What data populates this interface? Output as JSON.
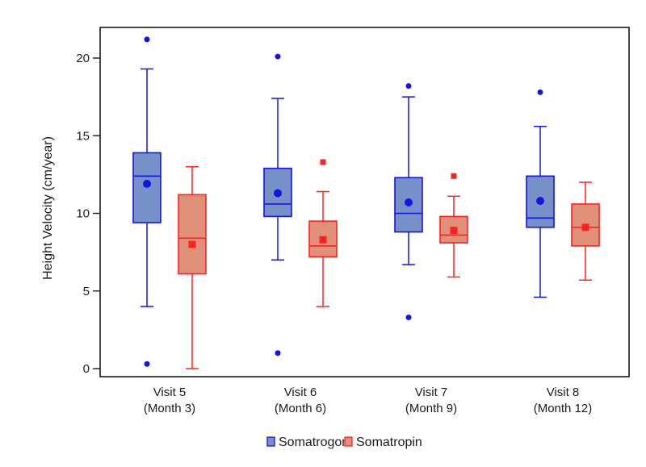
{
  "chart_data": {
    "type": "boxplot",
    "title": "",
    "xlabel": "",
    "ylabel": "Height Velocity (cm/year)",
    "ylim": [
      -0.8,
      22
    ],
    "yticks": [
      0,
      5,
      10,
      15,
      20
    ],
    "grid": false,
    "legend_position": "bottom-center",
    "categories": [
      {
        "line1": "Visit 5",
        "line2": "(Month 3)"
      },
      {
        "line1": "Visit 6",
        "line2": "(Month 6)"
      },
      {
        "line1": "Visit 7",
        "line2": "(Month 9)"
      },
      {
        "line1": "Visit 8",
        "line2": "(Month 12)"
      }
    ],
    "series": [
      {
        "name": "Somatrogon",
        "stroke": "#1414e6",
        "fill": "#7890c8",
        "mean_marker": "circle",
        "boxes": [
          {
            "whisker_low": 4.0,
            "q1": 9.4,
            "median": 12.4,
            "q3": 13.9,
            "whisker_high": 19.3,
            "mean": 11.9,
            "outliers": [
              21.2,
              0.3
            ]
          },
          {
            "whisker_low": 7.0,
            "q1": 9.8,
            "median": 10.6,
            "q3": 12.9,
            "whisker_high": 17.4,
            "mean": 11.3,
            "outliers": [
              20.1,
              1.0
            ]
          },
          {
            "whisker_low": 6.7,
            "q1": 8.8,
            "median": 10.0,
            "q3": 12.3,
            "whisker_high": 17.5,
            "mean": 10.7,
            "outliers": [
              18.2,
              3.3
            ]
          },
          {
            "whisker_low": 4.6,
            "q1": 9.1,
            "median": 9.7,
            "q3": 12.4,
            "whisker_high": 15.6,
            "mean": 10.8,
            "outliers": [
              17.8
            ]
          }
        ]
      },
      {
        "name": "Somatropin",
        "stroke": "#ff2020",
        "fill": "#e09078",
        "mean_marker": "square",
        "boxes": [
          {
            "whisker_low": 0.0,
            "q1": 6.1,
            "median": 8.4,
            "q3": 11.2,
            "whisker_high": 13.0,
            "mean": 8.0,
            "outliers": []
          },
          {
            "whisker_low": 4.0,
            "q1": 7.2,
            "median": 7.9,
            "q3": 9.5,
            "whisker_high": 11.4,
            "mean": 8.3,
            "outliers": [
              13.3
            ]
          },
          {
            "whisker_low": 5.9,
            "q1": 8.1,
            "median": 8.6,
            "q3": 9.8,
            "whisker_high": 11.1,
            "mean": 8.9,
            "outliers": [
              12.4
            ]
          },
          {
            "whisker_low": 5.7,
            "q1": 7.9,
            "median": 9.1,
            "q3": 10.6,
            "whisker_high": 12.0,
            "mean": 9.1,
            "outliers": []
          }
        ]
      }
    ]
  }
}
